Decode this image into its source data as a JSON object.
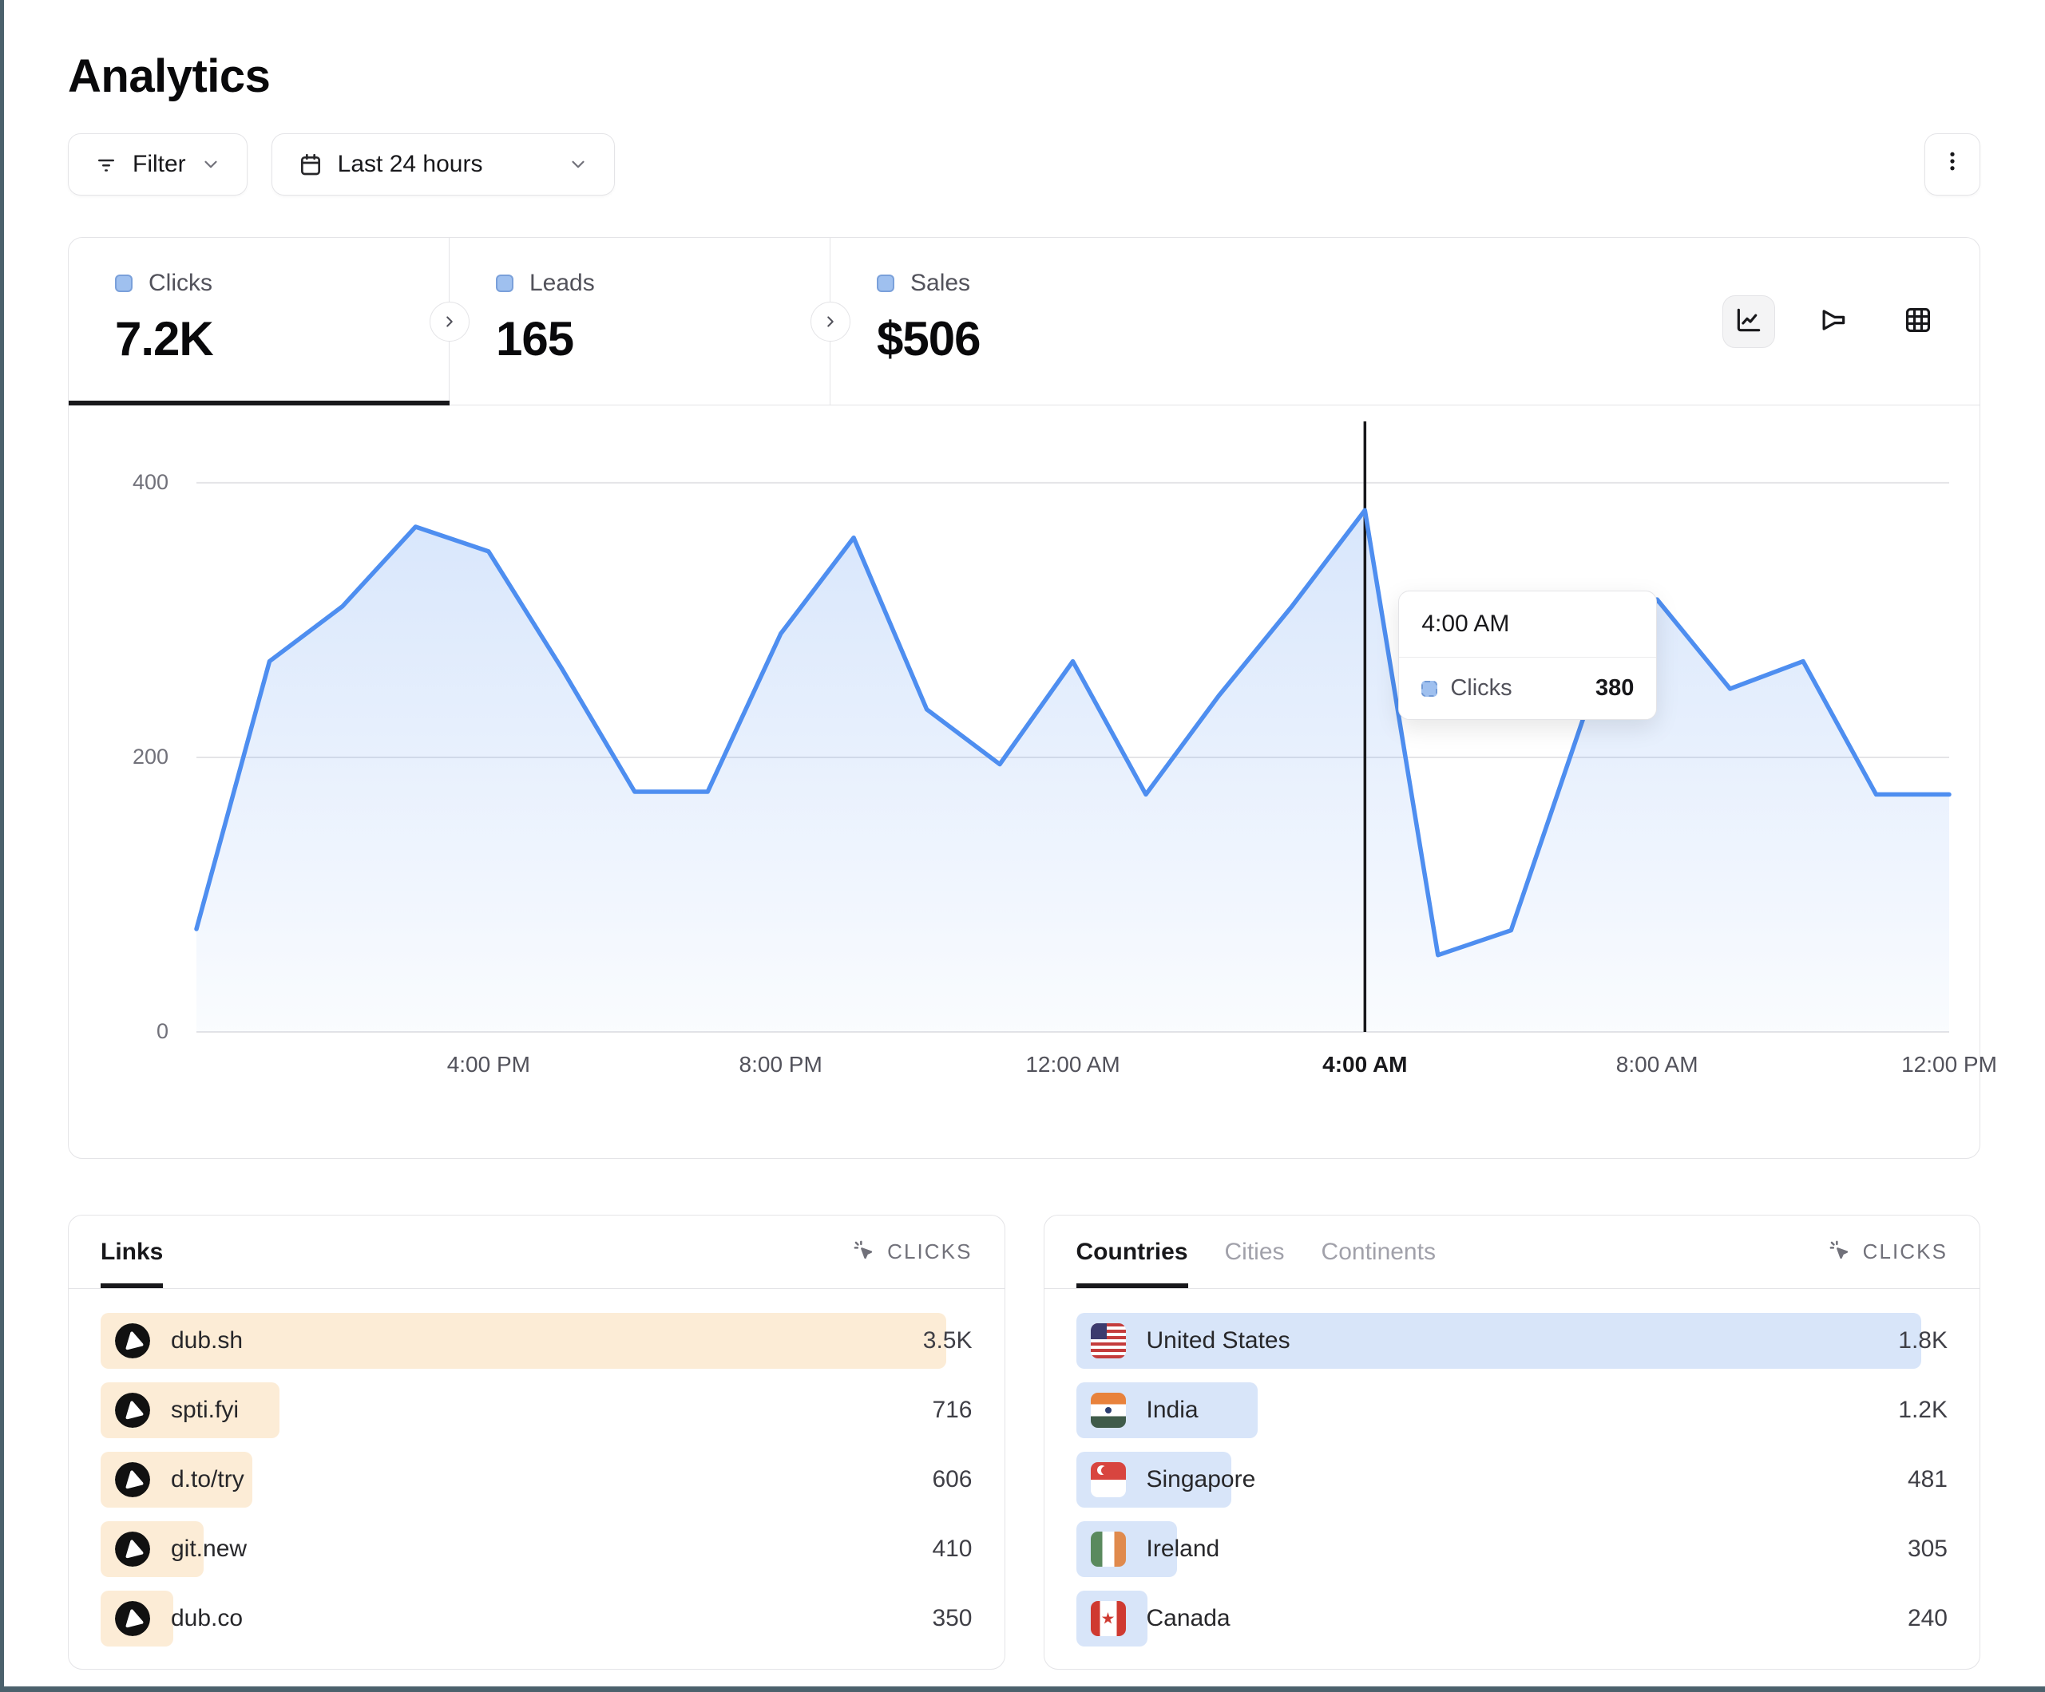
{
  "page": {
    "title": "Analytics"
  },
  "toolbar": {
    "filter": {
      "label": "Filter"
    },
    "date_range": {
      "label": "Last 24 hours"
    }
  },
  "metrics": {
    "tabs": [
      {
        "label": "Clicks",
        "value": "7.2K",
        "active": true
      },
      {
        "label": "Leads",
        "value": "165",
        "active": false
      },
      {
        "label": "Sales",
        "value": "$506",
        "active": false
      }
    ]
  },
  "chart_toolbar": {
    "options": [
      "line-chart",
      "funnel-chart",
      "table-grid"
    ],
    "selected": "line-chart"
  },
  "chart_data": {
    "type": "area",
    "series_name": "Clicks",
    "x": [
      "12:00 PM",
      "1:00 PM",
      "2:00 PM",
      "3:00 PM",
      "4:00 PM",
      "5:00 PM",
      "6:00 PM",
      "7:00 PM",
      "8:00 PM",
      "9:00 PM",
      "10:00 PM",
      "11:00 PM",
      "12:00 AM",
      "1:00 AM",
      "2:00 AM",
      "3:00 AM",
      "4:00 AM",
      "5:00 AM",
      "6:00 AM",
      "7:00 AM",
      "8:00 AM",
      "9:00 AM",
      "10:00 AM",
      "11:00 AM",
      "12:00 PM"
    ],
    "values": [
      75,
      270,
      310,
      368,
      350,
      265,
      175,
      175,
      290,
      360,
      235,
      195,
      270,
      173,
      245,
      310,
      380,
      56,
      74,
      230,
      315,
      250,
      270,
      173,
      173
    ],
    "ylim": [
      0,
      436
    ],
    "yticks": [
      0,
      200,
      400
    ],
    "xtick_indices": [
      4,
      8,
      12,
      16,
      20,
      24
    ],
    "xtick_labels": [
      "4:00 PM",
      "8:00 PM",
      "12:00 AM",
      "4:00 AM",
      "8:00 AM",
      "12:00 PM"
    ],
    "grid": "horizontal",
    "legend_position": "none",
    "line_color": "#4e8ef0",
    "highlight_index": 16,
    "tooltip": {
      "title": "4:00 AM",
      "series": "Clicks",
      "value": "380"
    }
  },
  "links_panel": {
    "tab_label": "Links",
    "metric_label": "CLICKS",
    "items": [
      {
        "label": "dub.sh",
        "value": "3.5K",
        "bar_pct": 97,
        "icon": "dub-logo-icon"
      },
      {
        "label": "spti.fyi",
        "value": "716",
        "bar_pct": 20.5,
        "icon": "dub-logo-icon"
      },
      {
        "label": "d.to/try",
        "value": "606",
        "bar_pct": 17.4,
        "icon": "dub-logo-icon"
      },
      {
        "label": "git.new",
        "value": "410",
        "bar_pct": 11.8,
        "icon": "dub-logo-icon"
      },
      {
        "label": "dub.co",
        "value": "350",
        "bar_pct": 8.3,
        "icon": "dub-logo-icon"
      }
    ]
  },
  "geo_panel": {
    "tabs": [
      "Countries",
      "Cities",
      "Continents"
    ],
    "active_tab": "Countries",
    "metric_label": "CLICKS",
    "items": [
      {
        "label": "United States",
        "value": "1.8K",
        "bar_pct": 97,
        "flag": "us-flag-icon"
      },
      {
        "label": "India",
        "value": "1.2K",
        "bar_pct": 20.8,
        "flag": "india-flag-icon"
      },
      {
        "label": "Singapore",
        "value": "481",
        "bar_pct": 17.8,
        "flag": "singapore-flag-icon"
      },
      {
        "label": "Ireland",
        "value": "305",
        "bar_pct": 11.6,
        "flag": "ireland-flag-icon"
      },
      {
        "label": "Canada",
        "value": "240",
        "bar_pct": 8.2,
        "flag": "canada-flag-icon"
      }
    ]
  },
  "colors": {
    "accent_blue": "#4e8ef0",
    "legend_dot": "#9fc0ef",
    "links_bar": "#fcecd6",
    "countries_bar": "#d8e5f9",
    "grid_line": "#e4e4e7",
    "crosshair": "#18181b"
  }
}
